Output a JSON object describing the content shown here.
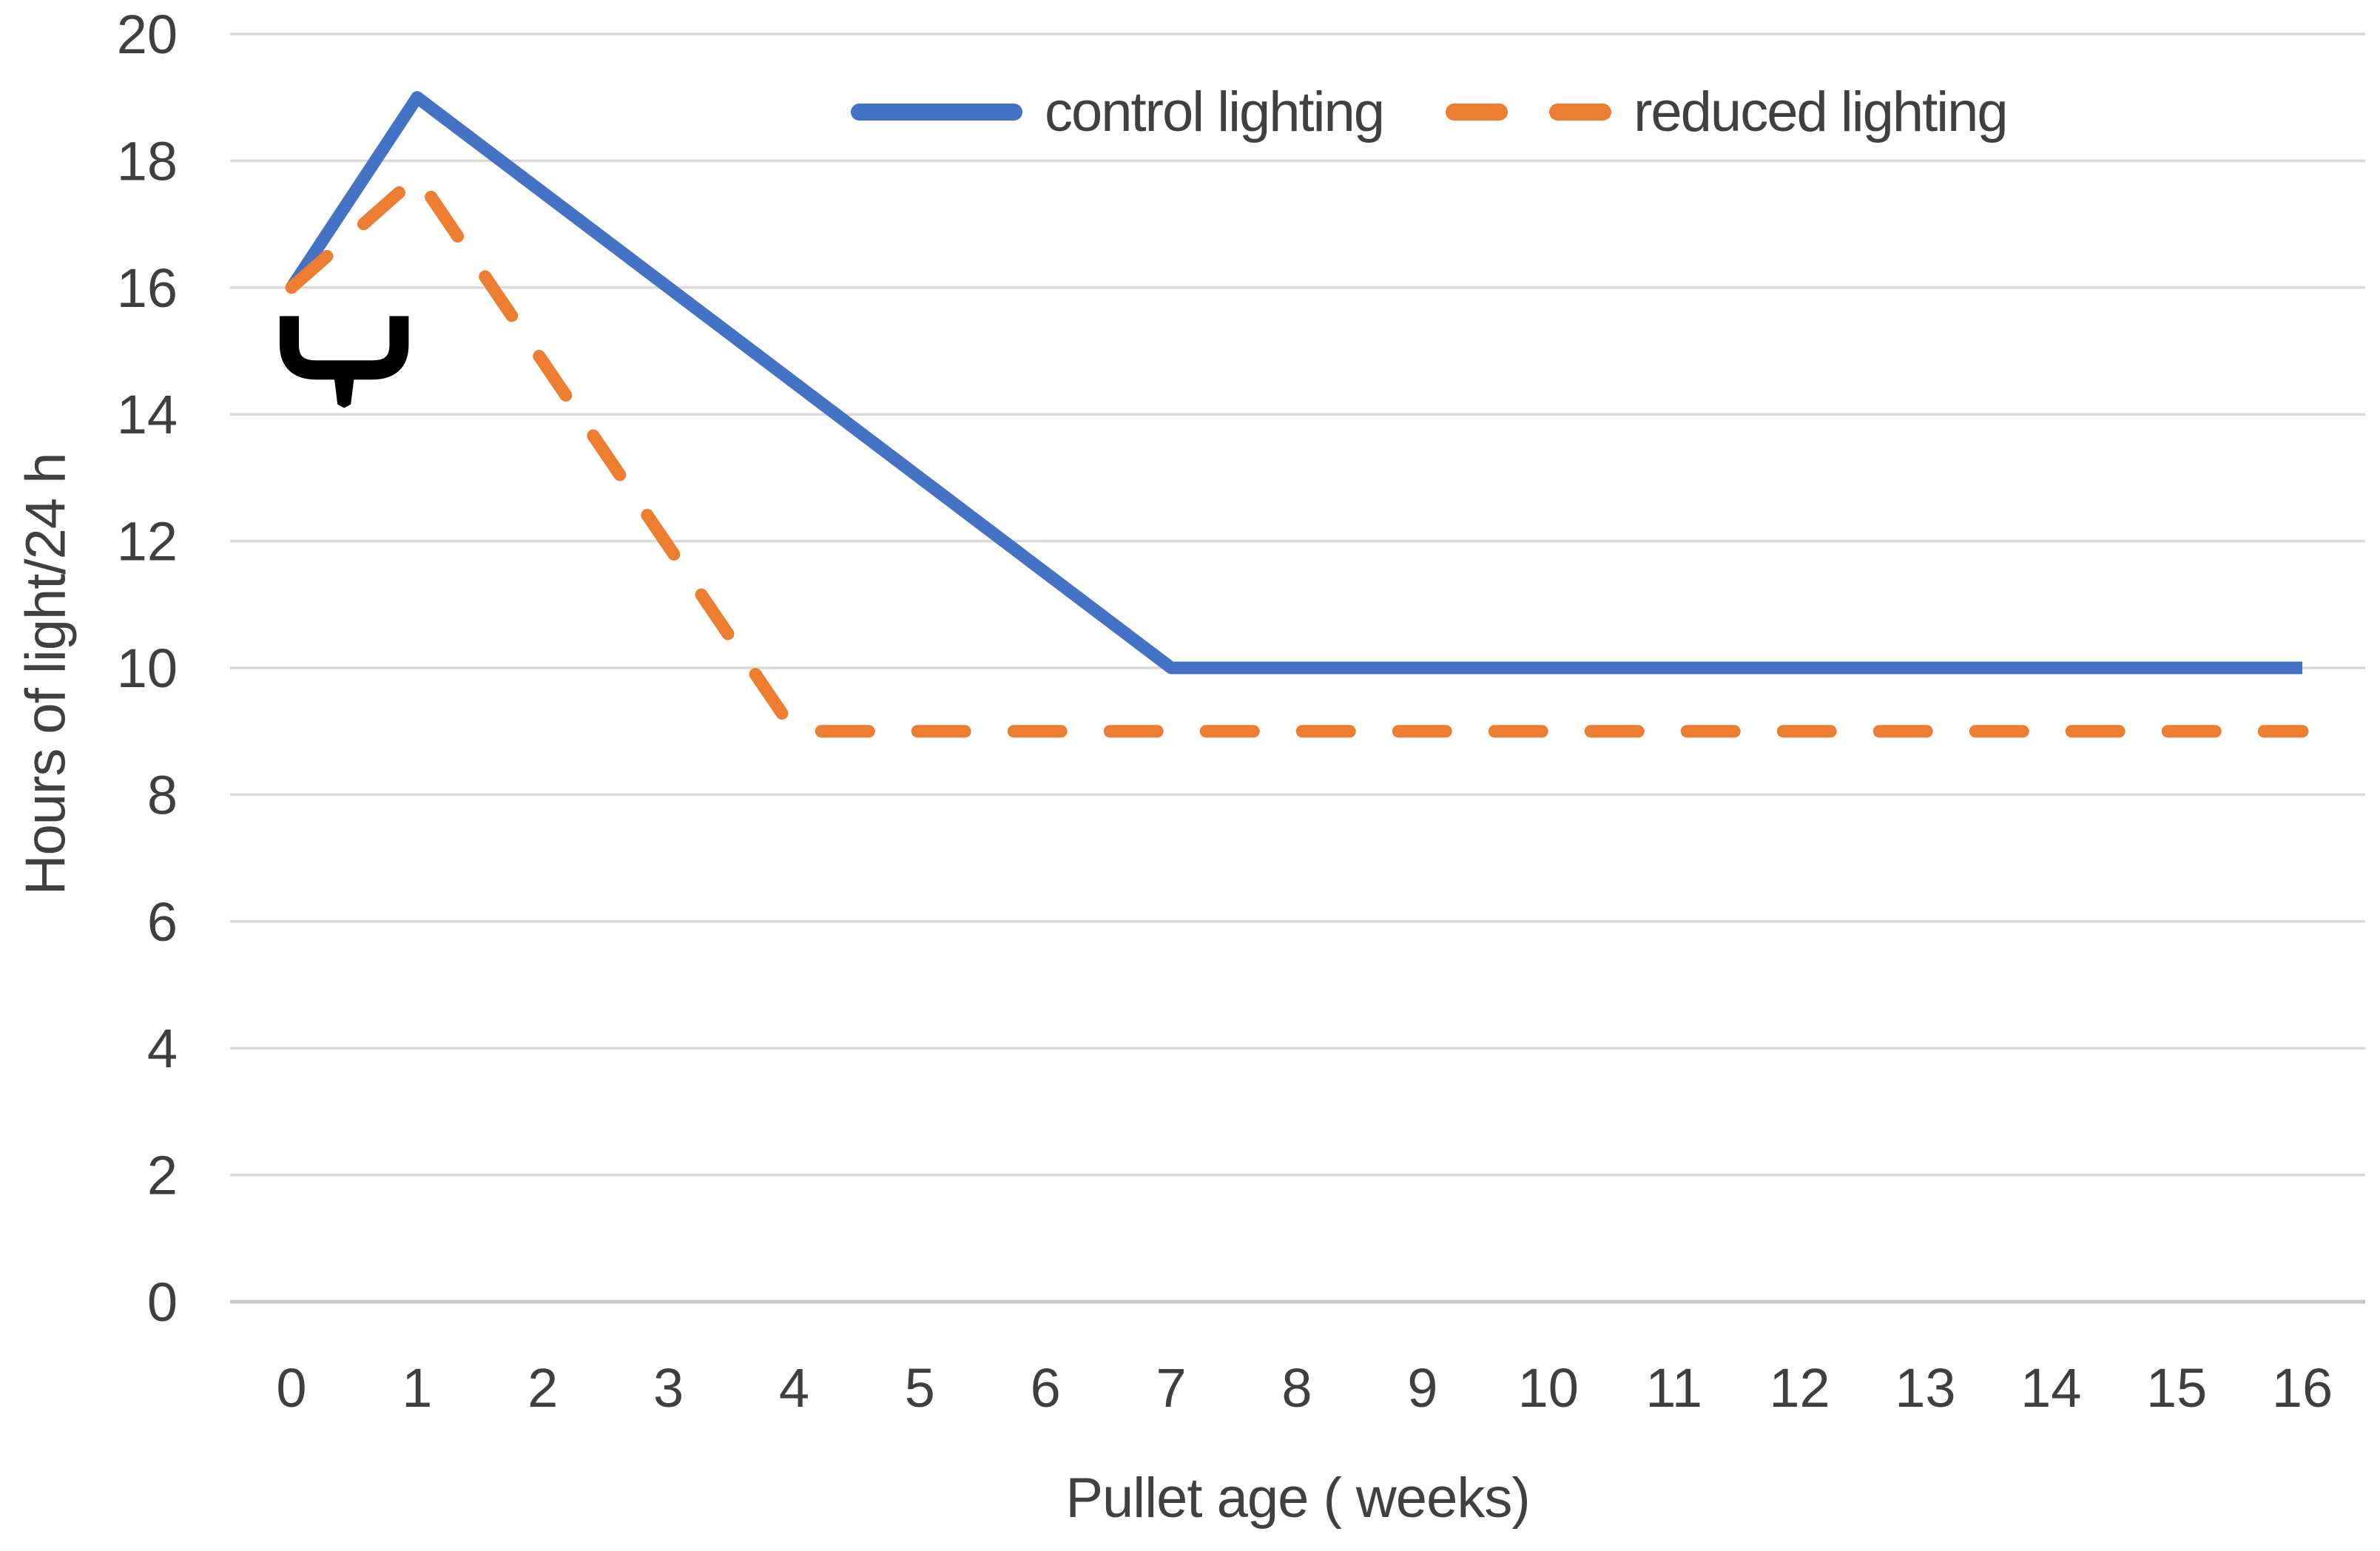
{
  "chart_data": {
    "type": "line",
    "title": "",
    "xlabel": "Pullet age ( weeks)",
    "ylabel": "Hours of light/24 h",
    "xlim": [
      -0.5,
      16.5
    ],
    "ylim": [
      0,
      20
    ],
    "x_ticks": [
      0,
      1,
      2,
      3,
      4,
      5,
      6,
      7,
      8,
      9,
      10,
      11,
      12,
      13,
      14,
      15,
      16
    ],
    "y_ticks": [
      0,
      2,
      4,
      6,
      8,
      10,
      12,
      14,
      16,
      18,
      20
    ],
    "grid": "horizontal",
    "legend_position": "top-center",
    "series": [
      {
        "name": "control lighting",
        "style": "solid",
        "color": "#4472C4",
        "points": [
          [
            0,
            16
          ],
          [
            1,
            19
          ],
          [
            7,
            10
          ],
          [
            16,
            10
          ]
        ]
      },
      {
        "name": "reduced lighting",
        "style": "dashed",
        "color": "#ED7D31",
        "points": [
          [
            0,
            16
          ],
          [
            1,
            17.75
          ],
          [
            4,
            9
          ],
          [
            16,
            9
          ]
        ]
      }
    ],
    "annotation": {
      "shape": "horizontal-curly-brace-down",
      "week_from": 0,
      "week_to": 0.85,
      "y_top": 15.55,
      "y_bar": 14.7,
      "y_tail_tip": 14.1,
      "color": "#000000"
    },
    "colors": {
      "gridline": "#D9D9D9",
      "axis_line": "#C6C6C6",
      "tick_text": "#3F3F3F",
      "title_text": "#404040"
    }
  }
}
